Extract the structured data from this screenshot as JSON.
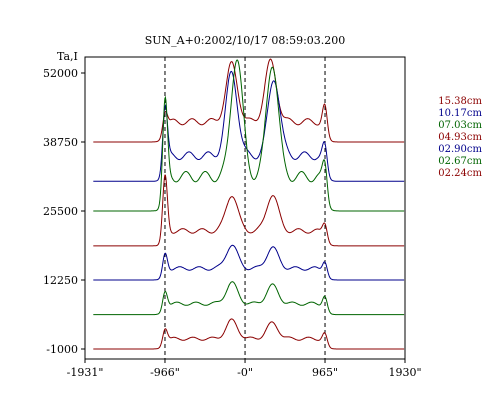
{
  "chart_data": {
    "type": "line",
    "title": "SUN_A+0:2002/10/17 08:59:03.200",
    "ylabel": "Ta,I",
    "xlabel": "",
    "x_ticks": [
      "-1931\"",
      "-966\"",
      "-0\"",
      "965\"",
      "1930\""
    ],
    "y_ticks": [
      "52000",
      "38750",
      "25500",
      "12250",
      "-1000"
    ],
    "xlim": [
      -1931,
      1930
    ],
    "ylim": [
      -1000,
      52000
    ],
    "reference_lines_x": [
      -966,
      0,
      965
    ],
    "series": [
      {
        "name": "15.38cm",
        "color": "#8b0000",
        "offset": 38750,
        "peaks": [
          {
            "x": -966,
            "h": 4000
          },
          {
            "x": -160,
            "h": 11000
          },
          {
            "x": 310,
            "h": 11500
          },
          {
            "x": 965,
            "h": 5000
          }
        ]
      },
      {
        "name": "10.17cm",
        "color": "#00008b",
        "offset": 31200,
        "peaks": [
          {
            "x": -966,
            "h": 12000
          },
          {
            "x": -160,
            "h": 16000
          },
          {
            "x": 350,
            "h": 15000
          },
          {
            "x": 965,
            "h": 4500
          }
        ]
      },
      {
        "name": "07.03cm",
        "color": "#006400",
        "offset": 25500,
        "peaks": [
          {
            "x": -966,
            "h": 18000
          },
          {
            "x": -100,
            "h": 23000
          },
          {
            "x": 330,
            "h": 22000
          },
          {
            "x": 965,
            "h": 6000
          }
        ]
      },
      {
        "name": "04.93cm",
        "color": "#8b0000",
        "offset": 18800,
        "peaks": [
          {
            "x": -966,
            "h": 12000
          },
          {
            "x": -160,
            "h": 7000
          },
          {
            "x": 330,
            "h": 7000
          },
          {
            "x": 965,
            "h": 3000
          }
        ]
      },
      {
        "name": "02.90cm",
        "color": "#00008b",
        "offset": 12250,
        "peaks": [
          {
            "x": -966,
            "h": 4000
          },
          {
            "x": -160,
            "h": 4500
          },
          {
            "x": 330,
            "h": 4000
          },
          {
            "x": 965,
            "h": 2500
          }
        ]
      },
      {
        "name": "02.67cm",
        "color": "#006400",
        "offset": 5600,
        "peaks": [
          {
            "x": -966,
            "h": 3500
          },
          {
            "x": -160,
            "h": 4000
          },
          {
            "x": 330,
            "h": 3500
          },
          {
            "x": 965,
            "h": 2500
          }
        ]
      },
      {
        "name": "02.24cm",
        "color": "#8b0000",
        "offset": -1000,
        "peaks": [
          {
            "x": -966,
            "h": 3000
          },
          {
            "x": -160,
            "h": 3500
          },
          {
            "x": 330,
            "h": 3000
          },
          {
            "x": 965,
            "h": 2000
          }
        ]
      }
    ]
  }
}
